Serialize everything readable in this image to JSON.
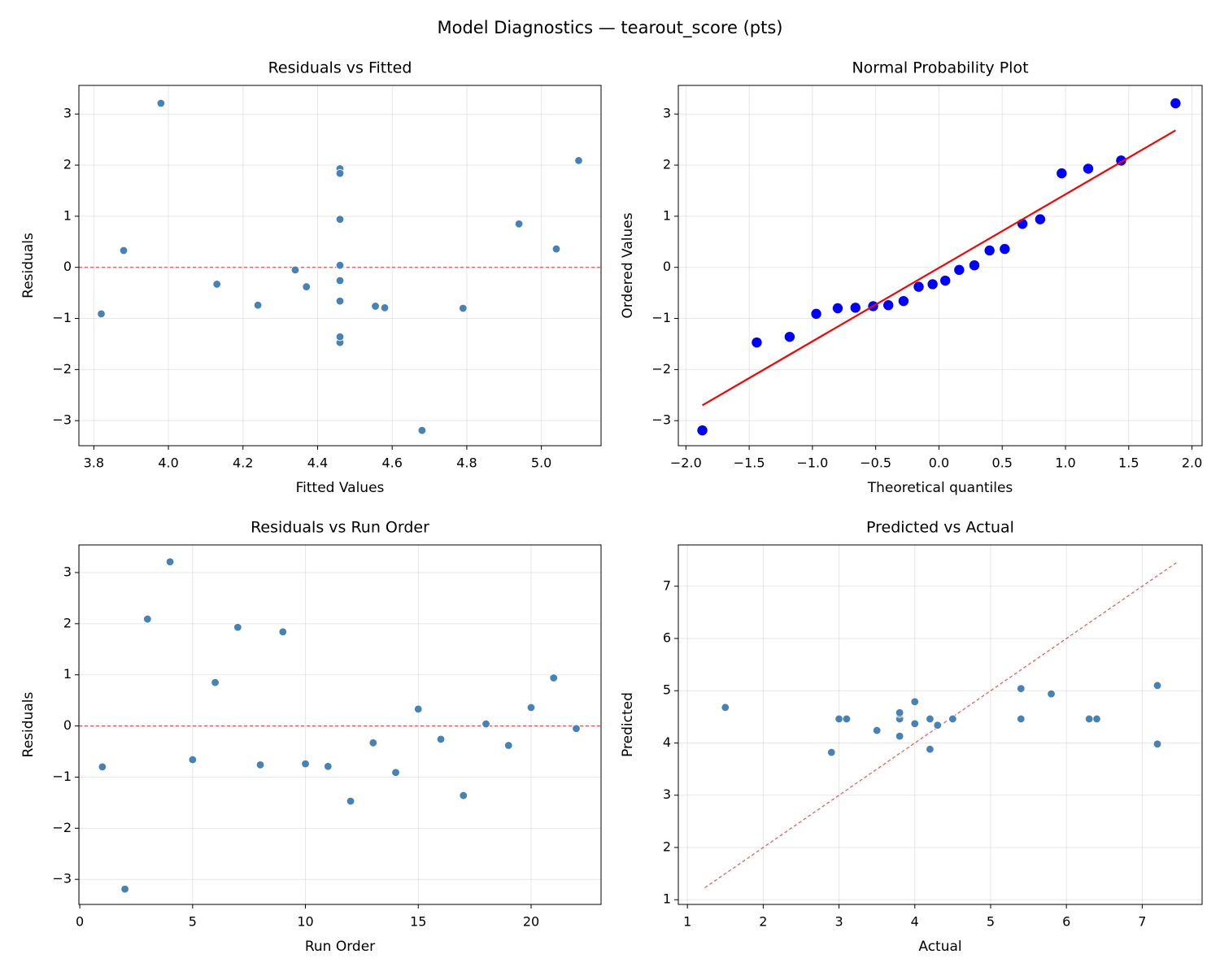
{
  "title": "Model Diagnostics — tearout_score (pts)",
  "chart_data": [
    {
      "type": "scatter",
      "title": "Residuals vs Fitted",
      "xlabel": "Fitted Values",
      "ylabel": "Residuals",
      "x": [
        4.79,
        4.68,
        5.1,
        3.98,
        4.46,
        4.94,
        4.46,
        4.555,
        4.46,
        4.24,
        4.58,
        4.46,
        4.13,
        3.82,
        3.88,
        4.46,
        4.46,
        4.46,
        4.37,
        5.04,
        4.46,
        4.34
      ],
      "series": [
        {
          "color": "#4682b4",
          "values": [
            -0.8,
            -3.19,
            2.09,
            3.21,
            -0.66,
            0.85,
            1.93,
            -0.76,
            1.84,
            -0.74,
            -0.79,
            -1.47,
            -0.33,
            -0.91,
            0.33,
            -0.26,
            -1.36,
            0.04,
            -0.38,
            0.36,
            0.94,
            -0.05
          ]
        }
      ],
      "reference_line": {
        "y": 0,
        "color": "#ff0000",
        "dashed": true
      },
      "xlim": [
        3.76,
        5.16
      ],
      "ylim": [
        -3.49,
        3.56
      ],
      "xticks": [
        3.8,
        {
          "value": 4,
          "label": "4.0"
        },
        4.2,
        4.4,
        4.6,
        4.8,
        {
          "value": 5,
          "label": "5.0"
        }
      ],
      "yticks": [
        {
          "value": -3,
          "label": "−3"
        },
        {
          "value": -2,
          "label": "−2"
        },
        {
          "value": -1,
          "label": "−1"
        },
        0,
        1,
        2,
        3
      ],
      "grid": true
    },
    {
      "type": "scatter",
      "title": "Normal Probability Plot",
      "xlabel": "Theoretical quantiles",
      "ylabel": "Ordered Values",
      "x": [
        -1.87,
        -1.44,
        -1.18,
        -0.97,
        -0.8,
        -0.66,
        -0.52,
        -0.4,
        -0.28,
        -0.16,
        -0.05,
        0.05,
        0.16,
        0.28,
        0.4,
        0.52,
        0.66,
        0.8,
        0.97,
        1.18,
        1.44,
        1.87
      ],
      "series": [
        {
          "color": "#0000ff",
          "values": [
            -3.19,
            -1.47,
            -1.36,
            -0.91,
            -0.8,
            -0.79,
            -0.76,
            -0.74,
            -0.66,
            -0.38,
            -0.33,
            -0.26,
            -0.05,
            0.04,
            0.33,
            0.36,
            0.85,
            0.94,
            1.84,
            1.93,
            2.09,
            3.21
          ]
        }
      ],
      "fit_line": {
        "x": [
          -1.87,
          1.87
        ],
        "values": [
          -2.7,
          2.68
        ],
        "color": "#ff0000"
      },
      "xlim": [
        -2.06,
        2.08
      ],
      "ylim": [
        -3.49,
        3.56
      ],
      "xticks": [
        {
          "value": -2,
          "label": "−2.0"
        },
        {
          "value": -1.5,
          "label": "−1.5"
        },
        {
          "value": -1,
          "label": "−1.0"
        },
        {
          "value": -0.5,
          "label": "−0.5"
        },
        {
          "value": 0,
          "label": "0.0"
        },
        0.5,
        {
          "value": 1,
          "label": "1.0"
        },
        1.5,
        {
          "value": 2,
          "label": "2.0"
        }
      ],
      "yticks": [
        {
          "value": -3,
          "label": "−3"
        },
        {
          "value": -2,
          "label": "−2"
        },
        {
          "value": -1,
          "label": "−1"
        },
        0,
        1,
        2,
        3
      ],
      "grid": true
    },
    {
      "type": "scatter",
      "title": "Residuals vs Run Order",
      "xlabel": "Run Order",
      "ylabel": "Residuals",
      "x": [
        1,
        2,
        3,
        4,
        5,
        6,
        7,
        8,
        9,
        10,
        11,
        12,
        13,
        14,
        15,
        16,
        17,
        18,
        19,
        20,
        21,
        22
      ],
      "series": [
        {
          "color": "#4682b4",
          "values": [
            -0.8,
            -3.19,
            2.09,
            3.21,
            -0.66,
            0.85,
            1.93,
            -0.76,
            1.84,
            -0.74,
            -0.79,
            -1.47,
            -0.33,
            -0.91,
            0.33,
            -0.26,
            -1.36,
            0.04,
            -0.38,
            0.36,
            0.94,
            -0.05
          ]
        }
      ],
      "reference_line": {
        "y": 0,
        "color": "#ff0000",
        "dashed": true
      },
      "xlim": [
        -0.04,
        23.1
      ],
      "ylim": [
        -3.49,
        3.54
      ],
      "xticks": [
        0,
        5,
        10,
        15,
        20
      ],
      "yticks": [
        {
          "value": -3,
          "label": "−3"
        },
        {
          "value": -2,
          "label": "−2"
        },
        {
          "value": -1,
          "label": "−1"
        },
        0,
        1,
        2,
        3
      ],
      "grid": true
    },
    {
      "type": "scatter",
      "title": "Predicted vs Actual",
      "xlabel": "Actual",
      "ylabel": "Predicted",
      "x": [
        4.0,
        1.5,
        7.2,
        7.2,
        3.8,
        5.8,
        6.4,
        3.8,
        6.3,
        3.5,
        3.8,
        3.0,
        3.8,
        2.9,
        4.2,
        4.2,
        3.1,
        4.5,
        4.0,
        5.4,
        5.4,
        4.3
      ],
      "series": [
        {
          "color": "#4682b4",
          "values": [
            4.79,
            4.68,
            5.1,
            3.98,
            4.46,
            4.94,
            4.46,
            4.555,
            4.46,
            4.24,
            4.58,
            4.46,
            4.13,
            3.82,
            3.88,
            4.46,
            4.46,
            4.46,
            4.37,
            5.04,
            4.46,
            4.34
          ]
        }
      ],
      "reference_line": {
        "x": [
          1.23,
          7.47
        ],
        "values": [
          1.23,
          7.47
        ],
        "color": "#ff0000",
        "dashed": true
      },
      "xlim": [
        0.88,
        7.79
      ],
      "ylim": [
        0.91,
        7.79
      ],
      "xticks": [
        1,
        2,
        3,
        4,
        5,
        6,
        7
      ],
      "yticks": [
        1,
        2,
        3,
        4,
        5,
        6,
        7
      ],
      "grid": true
    }
  ]
}
